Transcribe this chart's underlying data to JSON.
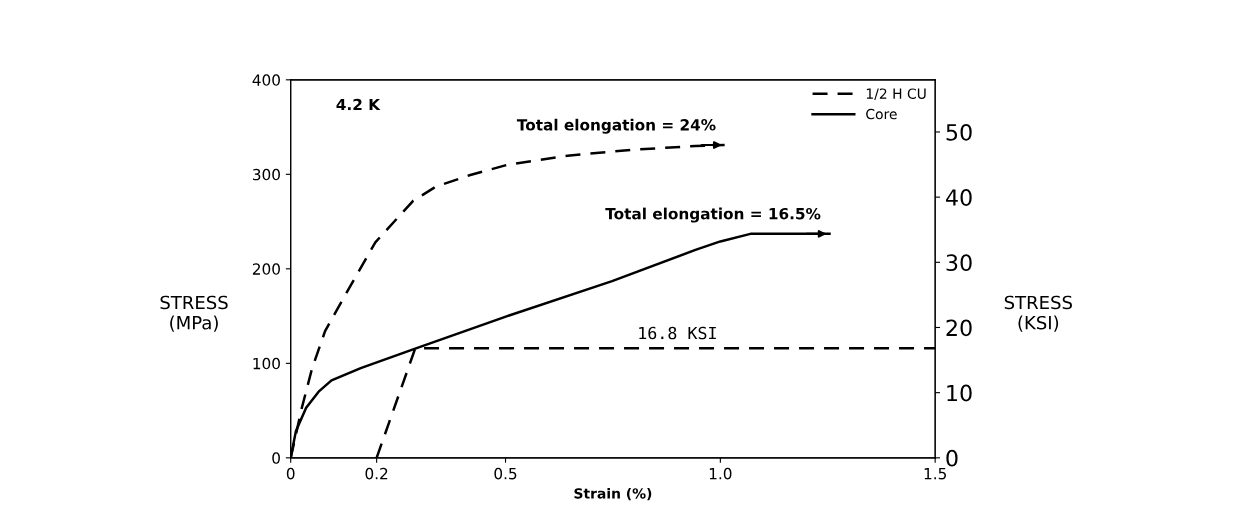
{
  "chart_data": {
    "type": "line",
    "xlabel": "Strain (%)",
    "ylabel": "STRESS\n(MPa)",
    "y2label": "STRESS\n(KSI)",
    "xlim": [
      0,
      1.5
    ],
    "xticks": [
      0,
      {
        "value": 0.2,
        "label": "0.2"
      },
      0.5,
      {
        "value": 1.0,
        "label": "1.0"
      },
      1.5
    ],
    "ylim": [
      0,
      400
    ],
    "yticks": [
      0,
      100,
      200,
      300,
      400
    ],
    "y2lim": [
      0,
      58.0
    ],
    "y2ticks": [
      0,
      10,
      20,
      30,
      40,
      50
    ],
    "grid": false,
    "legend": "top right",
    "series": [
      {
        "name": "1/2 H CU",
        "color": "#000000",
        "line_style": "dashed",
        "x": [
          0,
          0.026,
          0.05,
          0.08,
          0.129,
          0.197,
          0.285,
          0.338,
          0.416,
          0.504,
          0.65,
          0.796,
          0.942,
          1.01
        ],
        "values": [
          0,
          53,
          95,
          134,
          174,
          228,
          272,
          287,
          299,
          310,
          320,
          326,
          330,
          331
        ]
      },
      {
        "name": "Core",
        "color": "#000000",
        "line_style": "solid",
        "x": [
          0,
          0.012,
          0.036,
          0.065,
          0.095,
          0.163,
          0.28,
          0.504,
          0.748,
          0.942,
          1.0,
          1.07,
          1.254
        ],
        "values": [
          0,
          28,
          53,
          70,
          82,
          95,
          114,
          150,
          187,
          220,
          229,
          237,
          237
        ]
      },
      {
        "color": "#000000",
        "line_style": "dashed",
        "x": [
          0.2,
          0.29,
          1.5
        ],
        "values": [
          0,
          116,
          116
        ]
      }
    ],
    "annotations": [
      {
        "text": "4.2 K"
      },
      {
        "text": "Total elongation = 24%",
        "x": 1.01,
        "y": 331
      },
      {
        "text": "Total elongation = 16.5%",
        "x": 1.254,
        "y": 237
      },
      {
        "text": "16.8 KSI",
        "x": 0.9,
        "y": 116
      }
    ]
  }
}
